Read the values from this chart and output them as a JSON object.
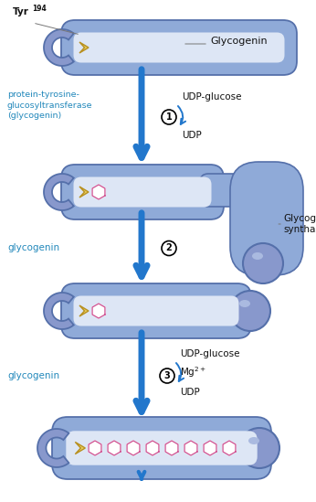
{
  "bg_color": "#ffffff",
  "arrow_color": "#2277cc",
  "tube_fill": "#8faad8",
  "tube_edge": "#5570aa",
  "tube_light": "#dde6f5",
  "ball_fill": "#8898cc",
  "ball_edge": "#5570aa",
  "tyr_fill": "#e8d060",
  "tyr_edge": "#b89020",
  "glucose_fill": "#ffffff",
  "glucose_edge": "#d05090",
  "text_blue": "#2288bb",
  "text_black": "#111111",
  "step1_left_label": "protein-tyrosine-\nglucosyltransferase\n(glycogenin)",
  "step2_left_label": "glycogenin",
  "step3_left_label": "glycogenin",
  "step1_right_top": "UDP-glucose",
  "step1_right_bot": "UDP",
  "step2_right": "Glycogen\nsynthase",
  "step3_right_top": "UDP-glucose",
  "step3_right_bot": "UDP",
  "step3_mid": "Mg$^{2+}$",
  "top_label": "Glycogenin",
  "tyr_label": "Tyr",
  "tyr_sup": "194",
  "circle1": "1",
  "circle2": "2",
  "circle3": "3"
}
